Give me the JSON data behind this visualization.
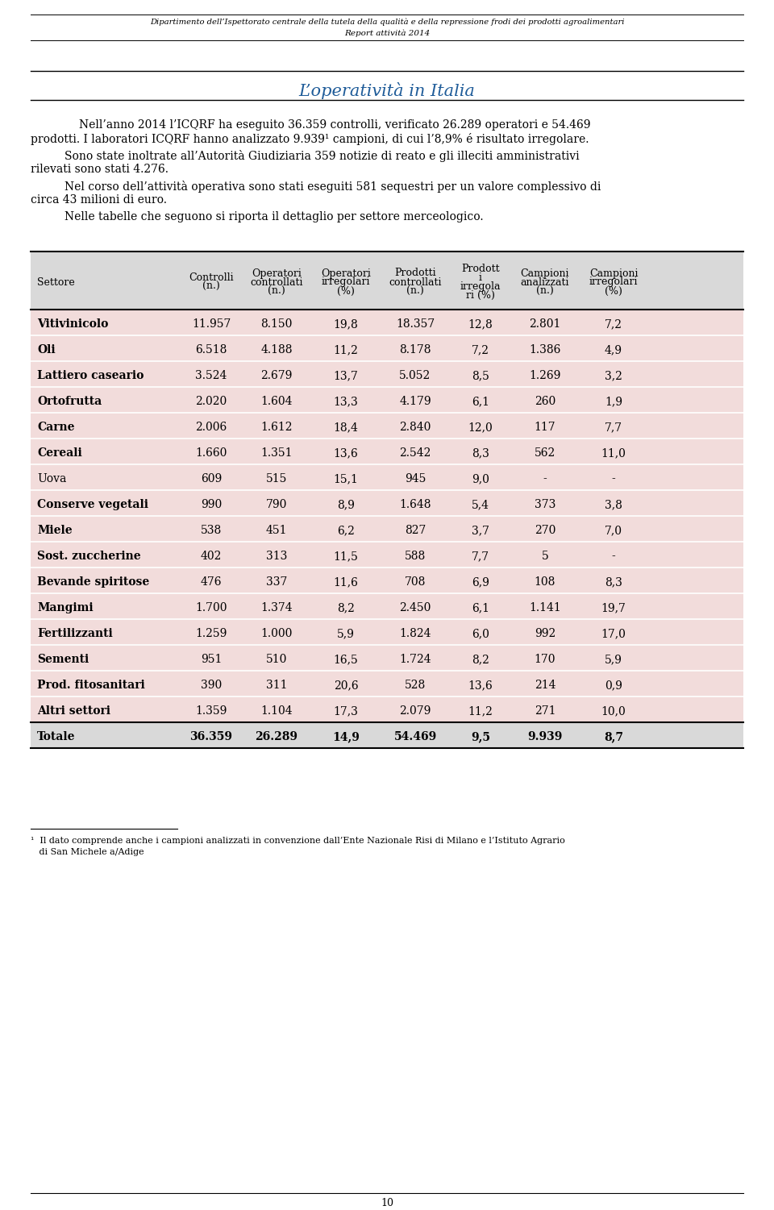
{
  "header_line1": "Dipartimento dell’Ispettorato centrale della tutela della qualità e della repressione frodi dei prodotti agroalimentari",
  "header_line2": "Report attività 2014",
  "section_title": "L’operatività in Italia",
  "col_headers": [
    "Settore",
    "Controlli\n(n.)",
    "Operatori\ncontrollati\n(n.)",
    "Operatori\nirregolari\n(%)",
    "Prodotti\ncontrollati\n(n.)",
    "Prodott\ni\nirregola\nri (%)",
    "Campioni\nanalizzati\n(n.)",
    "Campioni\nirregolari\n(%)"
  ],
  "rows": [
    [
      "Vitivinicolo",
      "11.957",
      "8.150",
      "19,8",
      "18.357",
      "12,8",
      "2.801",
      "7,2"
    ],
    [
      "Oli",
      "6.518",
      "4.188",
      "11,2",
      "8.178",
      "7,2",
      "1.386",
      "4,9"
    ],
    [
      "Lattiero caseario",
      "3.524",
      "2.679",
      "13,7",
      "5.052",
      "8,5",
      "1.269",
      "3,2"
    ],
    [
      "Ortofrutta",
      "2.020",
      "1.604",
      "13,3",
      "4.179",
      "6,1",
      "260",
      "1,9"
    ],
    [
      "Carne",
      "2.006",
      "1.612",
      "18,4",
      "2.840",
      "12,0",
      "117",
      "7,7"
    ],
    [
      "Cereali",
      "1.660",
      "1.351",
      "13,6",
      "2.542",
      "8,3",
      "562",
      "11,0"
    ],
    [
      "Uova",
      "609",
      "515",
      "15,1",
      "945",
      "9,0",
      "-",
      "-"
    ],
    [
      "Conserve vegetali",
      "990",
      "790",
      "8,9",
      "1.648",
      "5,4",
      "373",
      "3,8"
    ],
    [
      "Miele",
      "538",
      "451",
      "6,2",
      "827",
      "3,7",
      "270",
      "7,0"
    ],
    [
      "Sost. zuccherine",
      "402",
      "313",
      "11,5",
      "588",
      "7,7",
      "5",
      "-"
    ],
    [
      "Bevande spiritose",
      "476",
      "337",
      "11,6",
      "708",
      "6,9",
      "108",
      "8,3"
    ],
    [
      "Mangimi",
      "1.700",
      "1.374",
      "8,2",
      "2.450",
      "6,1",
      "1.141",
      "19,7"
    ],
    [
      "Fertilizzanti",
      "1.259",
      "1.000",
      "5,9",
      "1.824",
      "6,0",
      "992",
      "17,0"
    ],
    [
      "Sementi",
      "951",
      "510",
      "16,5",
      "1.724",
      "8,2",
      "170",
      "5,9"
    ],
    [
      "Prod. fitosanitari",
      "390",
      "311",
      "20,6",
      "528",
      "13,6",
      "214",
      "0,9"
    ],
    [
      "Altri settori",
      "1.359",
      "1.104",
      "17,3",
      "2.079",
      "11,2",
      "271",
      "10,0"
    ]
  ],
  "totale_row": [
    "Totale",
    "36.359",
    "26.289",
    "14,9",
    "54.469",
    "9,5",
    "9.939",
    "8,7"
  ],
  "footnote_text1": "¹  Il dato comprende anche i campioni analizzati in convenzione dall’Ente Nazionale Risi di Milano e l’Istituto Agrario",
  "footnote_text2": "   di San Michele a/Adige",
  "page_number": "10",
  "header_bg": "#d9d9d9",
  "row_bg": "#f2dcdb",
  "totale_bg": "#d9d9d9",
  "title_color": "#1f5c99",
  "line_color": "#000000"
}
